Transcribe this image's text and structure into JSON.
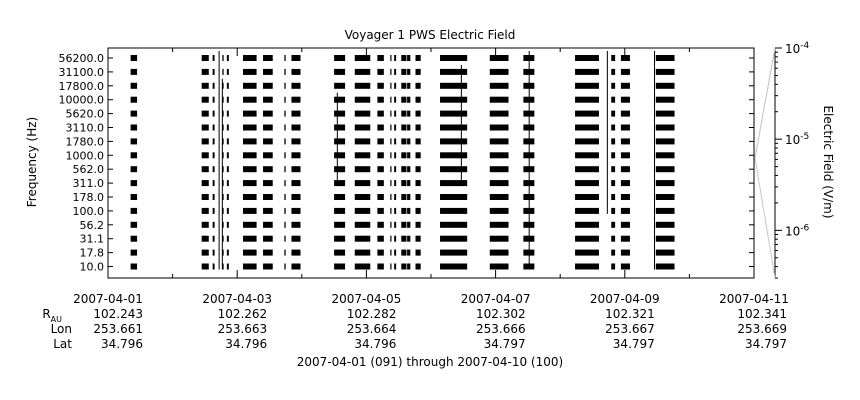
{
  "chart_data": {
    "type": "heatmap",
    "title": "Voyager 1 PWS Electric Field",
    "xlabel": "2007-04-01 (091) through 2007-04-10 (100)",
    "ylabel": "Frequency (Hz)",
    "colorbar_label": "Electric Field (V/m)",
    "x_range": [
      "2007-04-01",
      "2007-04-11"
    ],
    "x_ticks": [
      "2007-04-01",
      "2007-04-03",
      "2007-04-05",
      "2007-04-07",
      "2007-04-09",
      "2007-04-11"
    ],
    "channels": [
      "56200.0",
      "31100.0",
      "17800.0",
      "10000.0",
      "5620.0",
      "3110.0",
      "1780.0",
      "1000.0",
      "562.0",
      "311.0",
      "178.0",
      "100.0",
      "56.2",
      "31.1",
      "17.8",
      "10.0"
    ],
    "colorbar": {
      "scale": "log",
      "range": [
        3e-07,
        0.0001
      ],
      "tick_values": [
        0.0001,
        1e-05,
        1e-06
      ],
      "tick_labels": [
        {
          "base": "10",
          "exp": "-4"
        },
        {
          "base": "10",
          "exp": "-5"
        },
        {
          "base": "10",
          "exp": "-6"
        }
      ]
    },
    "ephemeris": {
      "rows": [
        {
          "label_main": "R",
          "label_sub": "AU",
          "values": [
            "102.243",
            "102.262",
            "102.282",
            "102.302",
            "102.321",
            "102.341"
          ]
        },
        {
          "label_main": "Lon",
          "label_sub": "",
          "values": [
            "253.661",
            "253.663",
            "253.664",
            "253.666",
            "253.667",
            "253.669"
          ]
        },
        {
          "label_main": "Lat",
          "label_sub": "",
          "values": [
            "34.796",
            "34.796",
            "34.796",
            "34.797",
            "34.797",
            "34.797"
          ]
        }
      ]
    },
    "data_blocks_days": [
      [
        0.35,
        0.45
      ],
      [
        1.45,
        1.56
      ],
      [
        1.62,
        1.65
      ],
      [
        1.77,
        1.79
      ],
      [
        1.84,
        1.87
      ],
      [
        2.09,
        2.3
      ],
      [
        2.4,
        2.55
      ],
      [
        2.73,
        2.75
      ],
      [
        2.84,
        2.98
      ],
      [
        3.5,
        3.67
      ],
      [
        3.82,
        4.06
      ],
      [
        4.17,
        4.27
      ],
      [
        4.37,
        4.38
      ],
      [
        4.43,
        4.46
      ],
      [
        4.54,
        4.62
      ],
      [
        4.63,
        4.68
      ],
      [
        4.76,
        4.84
      ],
      [
        5.14,
        5.56
      ],
      [
        5.91,
        6.2
      ],
      [
        6.43,
        6.6
      ],
      [
        7.23,
        7.6
      ],
      [
        7.79,
        7.85
      ],
      [
        7.94,
        8.08
      ],
      [
        8.48,
        8.77
      ]
    ],
    "spikes": [
      {
        "day": 1.72,
        "channel_top": "56200.0",
        "channel_bottom": "10.0"
      },
      {
        "day": 1.77,
        "channel_top": "17800.0",
        "channel_bottom": "10.0"
      },
      {
        "day": 3.55,
        "channel_top": "10000.0",
        "channel_bottom": "311.0"
      },
      {
        "day": 5.47,
        "channel_top": "31100.0",
        "channel_bottom": "311.0"
      },
      {
        "day": 6.52,
        "channel_top": "56200.0",
        "channel_bottom": "10.0"
      },
      {
        "day": 7.73,
        "channel_top": "56200.0",
        "channel_bottom": "100.0"
      },
      {
        "day": 8.46,
        "channel_top": "56200.0",
        "channel_bottom": "10.0"
      }
    ]
  }
}
